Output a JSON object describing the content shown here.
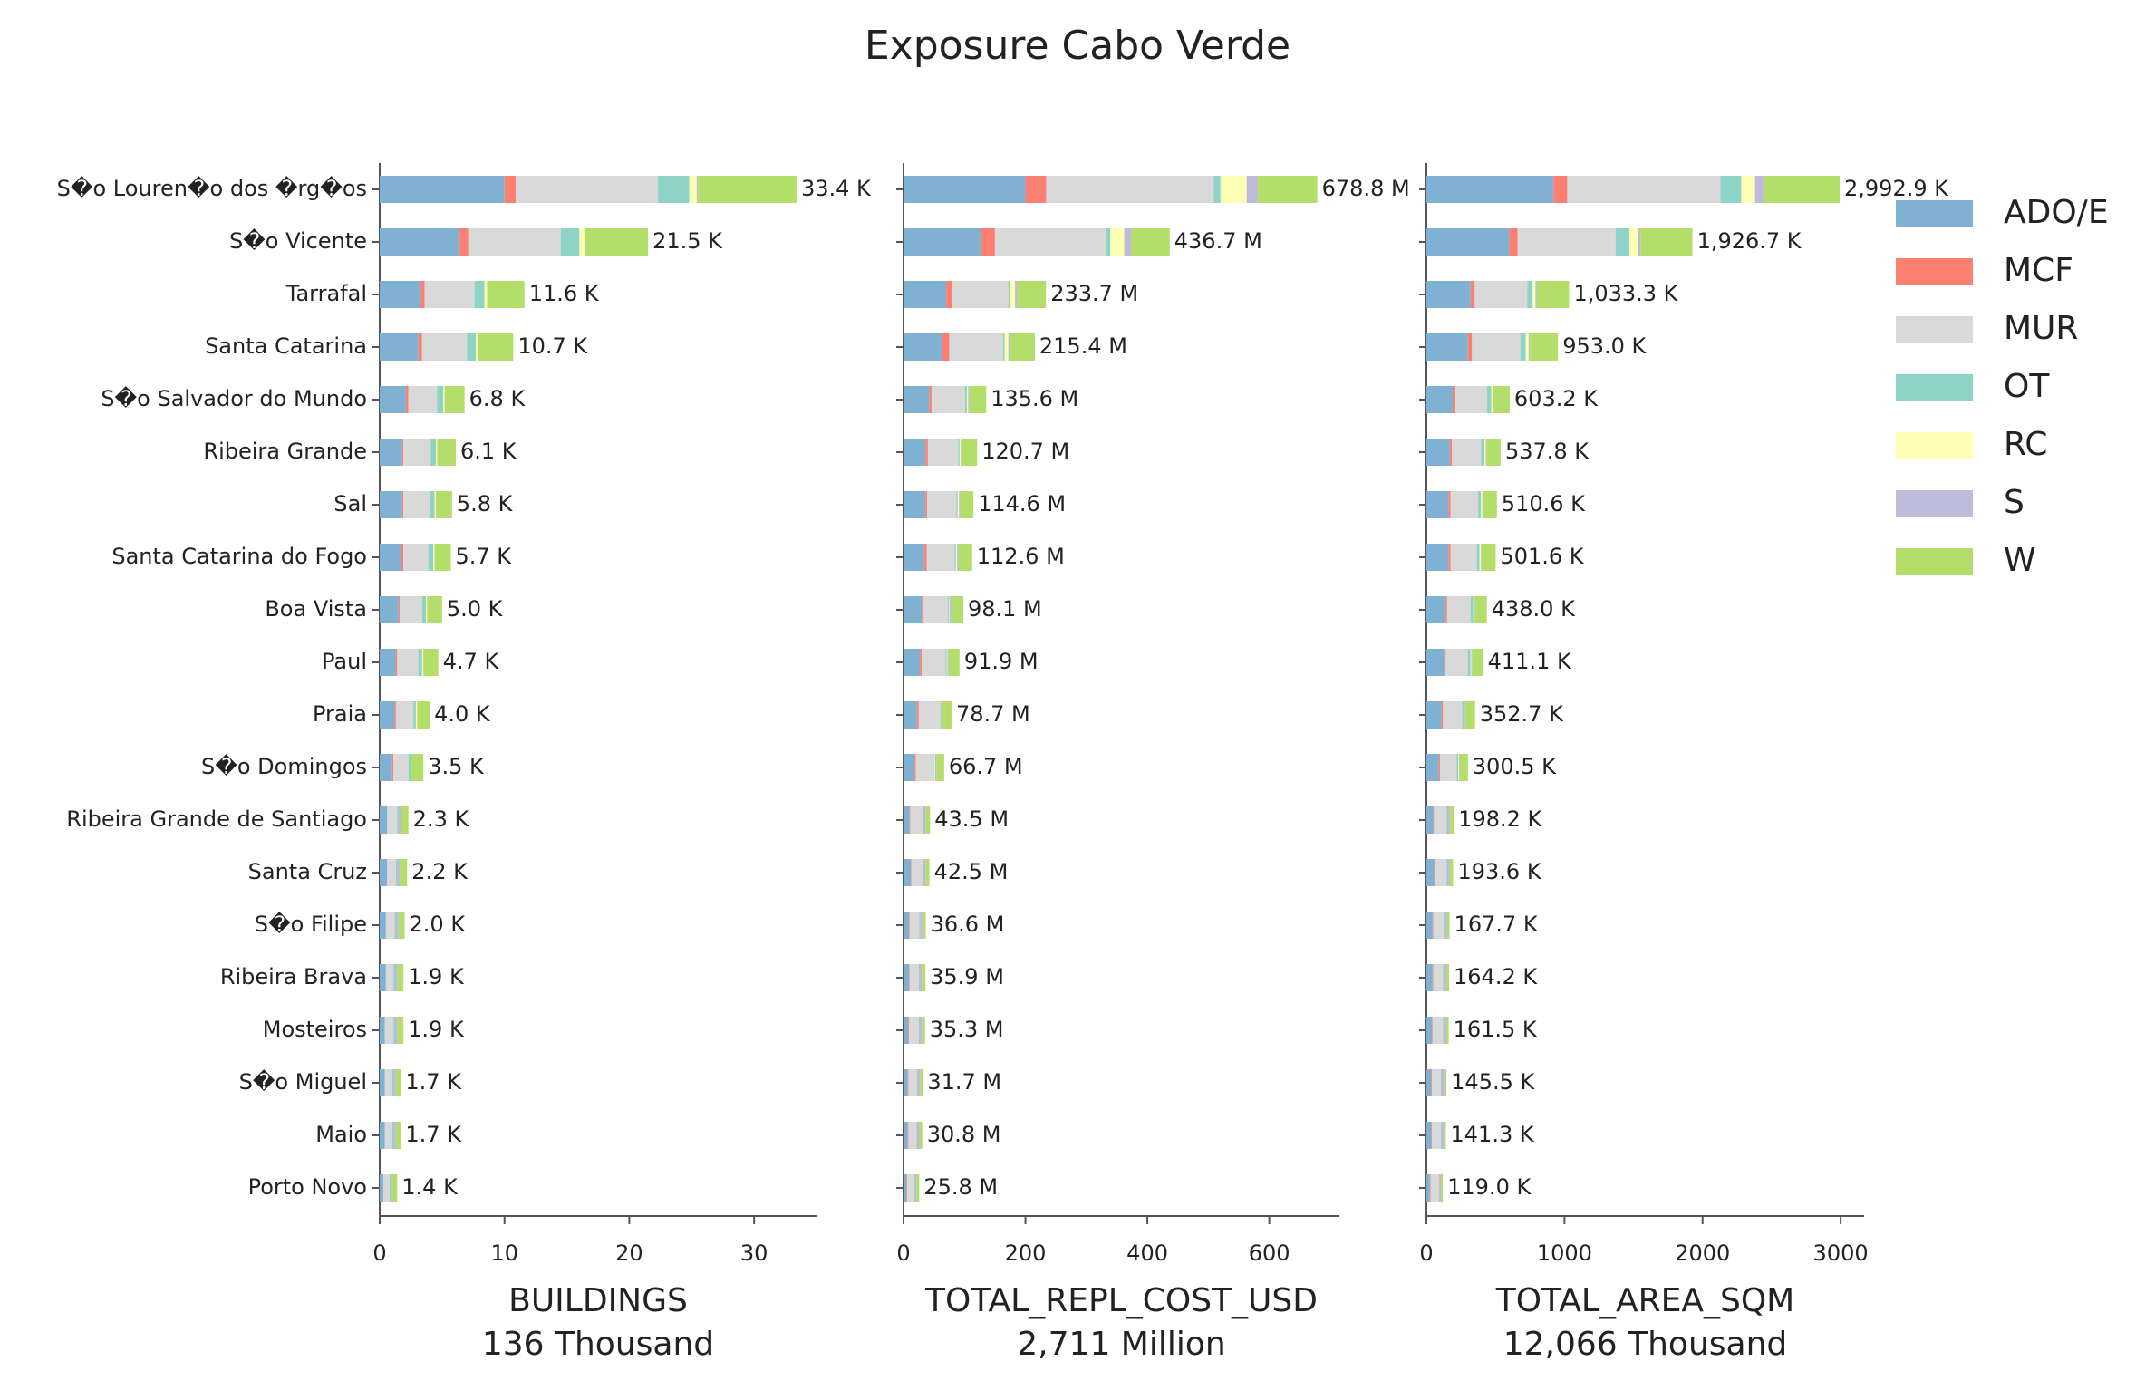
{
  "title": "Exposure Cabo Verde",
  "chart_data": {
    "type": "bar",
    "orientation": "horizontal",
    "stacked": true,
    "categories": [
      "S�o Louren�o dos �rg�os",
      "S�o Vicente",
      "Tarrafal",
      "Santa Catarina",
      "S�o Salvador do Mundo",
      "Ribeira Grande",
      "Sal",
      "Santa Catarina do Fogo",
      "Boa Vista",
      "Paul",
      "Praia",
      "S�o Domingos",
      "Ribeira Grande de Santiago",
      "Santa Cruz",
      "S�o Filipe",
      "Ribeira Brava",
      "Mosteiros",
      "S�o Miguel",
      "Maio",
      "Porto Novo"
    ],
    "legend": [
      {
        "name": "ADO/E",
        "color": "#80b1d3"
      },
      {
        "name": "MCF",
        "color": "#fb8072"
      },
      {
        "name": "MUR",
        "color": "#d9d9d9"
      },
      {
        "name": "OT",
        "color": "#8dd3c7"
      },
      {
        "name": "RC",
        "color": "#ffffb3"
      },
      {
        "name": "S",
        "color": "#bebada"
      },
      {
        "name": "W",
        "color": "#b3de69"
      }
    ],
    "panels": [
      {
        "xlabel": "BUILDINGS",
        "xlabel_sub": "136 Thousand",
        "xlim": [
          0,
          35
        ],
        "xticks": [
          0,
          10,
          20,
          30
        ],
        "values": [
          [
            10.0,
            6.4,
            3.3,
            3.1,
            2.1,
            1.8,
            1.8,
            1.7,
            1.5,
            1.3,
            1.2,
            1.0,
            0.6,
            0.6,
            0.5,
            0.5,
            0.4,
            0.4,
            0.4,
            0.3
          ],
          [
            0.9,
            0.7,
            0.3,
            0.3,
            0.2,
            0.1,
            0.1,
            0.2,
            0.1,
            0.1,
            0.1,
            0.1,
            0,
            0,
            0,
            0,
            0,
            0,
            0,
            0
          ],
          [
            11.4,
            7.4,
            4.0,
            3.6,
            2.3,
            2.2,
            2.1,
            2.0,
            1.8,
            1.7,
            1.4,
            1.2,
            0.8,
            0.7,
            0.7,
            0.6,
            0.7,
            0.6,
            0.6,
            0.5
          ],
          [
            2.5,
            1.5,
            0.8,
            0.7,
            0.5,
            0.4,
            0.4,
            0.4,
            0.3,
            0.3,
            0.2,
            0.2,
            0.1,
            0.1,
            0.1,
            0.1,
            0.1,
            0.1,
            0.1,
            0.1
          ],
          [
            0.6,
            0.4,
            0.2,
            0.2,
            0.1,
            0.1,
            0.1,
            0.1,
            0.1,
            0.1,
            0.1,
            0,
            0,
            0,
            0,
            0,
            0,
            0,
            0,
            0
          ],
          [
            0.1,
            0.05,
            0,
            0,
            0,
            0,
            0,
            0,
            0,
            0,
            0,
            0,
            0.2,
            0.2,
            0.2,
            0.2,
            0.2,
            0.2,
            0.2,
            0.1
          ],
          [
            7.9,
            5.05,
            3.0,
            2.8,
            1.6,
            1.5,
            1.3,
            1.3,
            1.2,
            1.2,
            1.0,
            1.0,
            0.6,
            0.6,
            0.5,
            0.5,
            0.5,
            0.4,
            0.4,
            0.4
          ]
        ],
        "totals": [
          33.4,
          21.5,
          11.6,
          10.7,
          6.8,
          6.1,
          5.8,
          5.7,
          5.0,
          4.7,
          4.0,
          3.5,
          2.3,
          2.2,
          2.0,
          1.9,
          1.9,
          1.7,
          1.7,
          1.4
        ],
        "total_labels": [
          "33.4 K",
          "21.5 K",
          "11.6 K",
          "10.7 K",
          "6.8 K",
          "6.1 K",
          "5.8 K",
          "5.7 K",
          "5.0 K",
          "4.7 K",
          "4.0 K",
          "3.5 K",
          "2.3 K",
          "2.2 K",
          "2.0 K",
          "1.9 K",
          "1.9 K",
          "1.7 K",
          "1.7 K",
          "1.4 K"
        ]
      },
      {
        "xlabel": "TOTAL_REPL_COST_USD",
        "xlabel_sub": "2,711 Million",
        "xlim": [
          0,
          715
        ],
        "xticks": [
          0,
          200,
          400,
          600
        ],
        "values": [
          [
            200,
            127,
            70,
            63,
            42,
            36,
            36,
            34,
            30,
            27,
            22,
            18,
            10,
            12,
            9,
            9,
            8,
            7,
            7,
            5
          ],
          [
            34,
            23,
            10,
            12,
            4,
            4,
            3,
            4,
            3,
            3,
            3,
            2,
            1,
            1,
            1,
            1,
            1,
            1,
            1,
            1
          ],
          [
            275,
            182,
            92,
            88,
            55,
            50,
            48,
            46,
            40,
            39,
            33,
            30,
            20,
            18,
            16,
            15,
            16,
            14,
            13,
            12
          ],
          [
            11,
            7,
            3,
            3,
            3,
            2,
            2,
            2,
            2,
            2,
            1,
            1,
            1,
            1,
            1,
            1,
            1,
            1,
            1,
            0
          ],
          [
            43,
            23,
            8,
            6,
            2,
            2,
            2,
            2,
            1,
            1,
            1,
            1,
            0,
            0,
            0,
            0,
            0,
            0,
            0,
            0
          ],
          [
            18,
            11,
            4,
            3,
            2,
            2,
            2,
            2,
            2,
            2,
            2,
            2,
            4,
            4,
            4,
            4,
            4,
            4,
            4,
            3
          ],
          [
            97.8,
            63.7,
            46.7,
            40.4,
            27.6,
            24.7,
            21.6,
            22.6,
            20.1,
            17.9,
            16.7,
            12.7,
            7.5,
            6.5,
            5.6,
            5.9,
            5.3,
            4.7,
            4.8,
            4.8
          ]
        ],
        "totals": [
          678.8,
          436.7,
          233.7,
          215.4,
          135.6,
          120.7,
          114.6,
          112.6,
          98.1,
          91.9,
          78.7,
          66.7,
          43.5,
          42.5,
          36.6,
          35.9,
          35.3,
          31.7,
          30.8,
          25.8
        ],
        "total_labels": [
          "678.8 M",
          "436.7 M",
          "233.7 M",
          "215.4 M",
          "135.6 M",
          "120.7 M",
          "114.6 M",
          "112.6 M",
          "98.1 M",
          "91.9 M",
          "78.7 M",
          "66.7 M",
          "43.5 M",
          "42.5 M",
          "36.6 M",
          "35.9 M",
          "35.3 M",
          "31.7 M",
          "30.8 M",
          "25.8 M"
        ]
      },
      {
        "xlabel": "TOTAL_AREA_SQM",
        "xlabel_sub": "12,066 Thousand",
        "xlim": [
          0,
          3170
        ],
        "xticks": [
          0,
          1000,
          2000,
          3000
        ],
        "values": [
          [
            920,
            600,
            320,
            300,
            190,
            170,
            160,
            160,
            140,
            130,
            110,
            90,
            50,
            55,
            45,
            45,
            40,
            35,
            35,
            25
          ],
          [
            100,
            60,
            30,
            30,
            20,
            15,
            15,
            15,
            10,
            10,
            10,
            10,
            5,
            5,
            5,
            5,
            5,
            5,
            5,
            5
          ],
          [
            1110,
            710,
            380,
            350,
            230,
            210,
            200,
            190,
            170,
            160,
            140,
            120,
            90,
            85,
            75,
            70,
            75,
            65,
            65,
            60
          ],
          [
            150,
            100,
            40,
            40,
            30,
            25,
            20,
            20,
            20,
            20,
            10,
            10,
            5,
            5,
            5,
            5,
            5,
            5,
            5,
            0
          ],
          [
            100,
            60,
            20,
            20,
            10,
            10,
            10,
            10,
            5,
            5,
            5,
            5,
            0,
            0,
            0,
            0,
            0,
            0,
            0,
            0
          ],
          [
            60,
            20,
            10,
            10,
            5,
            5,
            5,
            5,
            5,
            5,
            5,
            5,
            20,
            20,
            20,
            20,
            20,
            20,
            15,
            15
          ],
          [
            552.9,
            376.7,
            233.3,
            203,
            118.2,
            102.8,
            100.6,
            101.6,
            88,
            81.1,
            72.7,
            60.5,
            28.2,
            23.6,
            17.7,
            19.2,
            16.5,
            15.5,
            16.3,
            14
          ]
        ],
        "totals": [
          2992.9,
          1926.7,
          1033.3,
          953.0,
          603.2,
          537.8,
          510.6,
          501.6,
          438.0,
          411.1,
          352.7,
          300.5,
          198.2,
          193.6,
          167.7,
          164.2,
          161.5,
          145.5,
          141.3,
          119.0
        ],
        "total_labels": [
          "2,992.9 K",
          "1,926.7 K",
          "1,033.3 K",
          "953.0 K",
          "603.2 K",
          "537.8 K",
          "510.6 K",
          "501.6 K",
          "438.0 K",
          "411.1 K",
          "352.7 K",
          "300.5 K",
          "198.2 K",
          "193.6 K",
          "167.7 K",
          "164.2 K",
          "161.5 K",
          "145.5 K",
          "141.3 K",
          "119.0 K"
        ]
      }
    ]
  }
}
